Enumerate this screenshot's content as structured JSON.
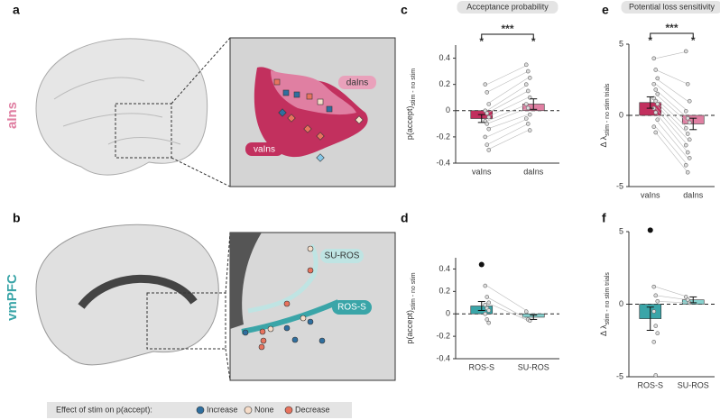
{
  "figure": {
    "panels": [
      "a",
      "b",
      "c",
      "d",
      "e",
      "f"
    ],
    "region_labels": [
      "aIns",
      "vmPFC"
    ],
    "inset_labels": [
      "daIns",
      "vaIns",
      "SU-ROS",
      "ROS-S"
    ]
  },
  "legend": {
    "title": "Effect of stim on p(accept):",
    "items": [
      {
        "label": "Increase",
        "color": "#2f6f9f"
      },
      {
        "label": "None",
        "color": "#f6dcc8"
      },
      {
        "label": "Decrease",
        "color": "#e8735e"
      }
    ]
  },
  "chart_data": [
    {
      "type": "bar",
      "title": "Acceptance probability",
      "ylabel": "p(accept)",
      "ylabel_sub": "stim - no stim",
      "categories": [
        "vaIns",
        "daIns"
      ],
      "values": [
        -0.06,
        0.05
      ],
      "errors": [
        0.03,
        0.04
      ],
      "colors": [
        "#c2305e",
        "#e07fa2"
      ],
      "points": [
        [
          0.2,
          0.14,
          0.05,
          0.0,
          -0.02,
          -0.05,
          -0.08,
          -0.1,
          -0.14,
          -0.2,
          -0.26,
          -0.3
        ],
        [
          0.35,
          0.3,
          0.25,
          0.2,
          0.15,
          0.1,
          0.05,
          0.02,
          -0.03,
          -0.06,
          -0.1,
          -0.15
        ]
      ],
      "stars": [
        "*",
        "*"
      ],
      "bracket": "***",
      "ylim": [
        -0.4,
        0.5
      ],
      "yticks": [
        0.4,
        0.2,
        0,
        -0.2,
        -0.4
      ]
    },
    {
      "type": "bar",
      "ylabel": "p(accept)",
      "ylabel_sub": "stim - no stim",
      "categories": [
        "ROS-S",
        "SU-ROS"
      ],
      "values": [
        0.07,
        -0.03
      ],
      "errors": [
        0.04,
        0.02
      ],
      "colors": [
        "#3aa5a8",
        "#86d2cf"
      ],
      "points": [
        [
          0.25,
          0.15,
          0.1,
          0.08,
          0.05,
          0.03,
          0.0,
          -0.05,
          -0.08
        ],
        [
          0.02,
          -0.05,
          -0.06
        ]
      ],
      "outliers": [
        0.44
      ],
      "ylim": [
        -0.4,
        0.5
      ],
      "yticks": [
        0.4,
        0.2,
        0,
        -0.2,
        -0.4
      ]
    },
    {
      "type": "bar",
      "title": "Potential loss sensitivity",
      "ylabel": "Δ λ",
      "ylabel_sub": "stim - no stim trials",
      "categories": [
        "vaIns",
        "daIns"
      ],
      "values": [
        0.9,
        -0.6
      ],
      "errors": [
        0.4,
        0.4
      ],
      "colors": [
        "#c2305e",
        "#e07fa2"
      ],
      "points": [
        [
          4,
          3.2,
          2.6,
          2.2,
          1.8,
          1.5,
          1.2,
          1.0,
          0.8,
          0.5,
          0.2,
          -0.3,
          -0.8,
          -1.2
        ],
        [
          4.5,
          2.2,
          1.0,
          0.3,
          -0.2,
          -0.5,
          -0.9,
          -1.3,
          -1.7,
          -2.1,
          -2.6,
          -3.0,
          -3.5,
          -4.0
        ]
      ],
      "stars": [
        "*",
        "*"
      ],
      "bracket": "***",
      "ylim": [
        -5,
        5
      ],
      "yticks": [
        5,
        0,
        -5
      ]
    },
    {
      "type": "bar",
      "ylabel": "Δ λ",
      "ylabel_sub": "stim - no stim trials",
      "categories": [
        "ROS-S",
        "SU-ROS"
      ],
      "values": [
        -1.0,
        0.3
      ],
      "errors": [
        0.8,
        0.2
      ],
      "colors": [
        "#3aa5a8",
        "#86d2cf"
      ],
      "points": [
        [
          1.2,
          0.6,
          0.2,
          -0.5,
          -1.5,
          -2.0,
          -2.6,
          -4.9
        ],
        [
          0.5,
          0.3,
          0.1
        ]
      ],
      "outliers": [
        5.1
      ],
      "ylim": [
        -5,
        5
      ],
      "yticks": [
        5,
        0,
        -5
      ]
    }
  ]
}
